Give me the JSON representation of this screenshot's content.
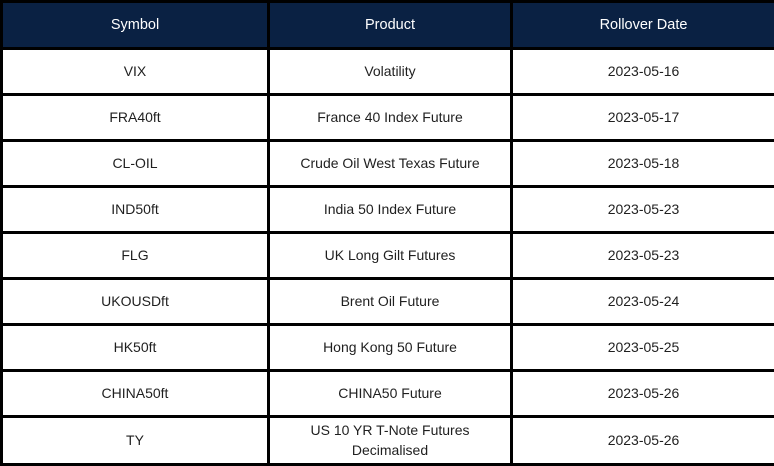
{
  "colors": {
    "header_bg": "#0a2143",
    "header_text": "#ffffff",
    "border": "#000000",
    "cell_bg": "#ffffff",
    "cell_text": "#1f1f1f"
  },
  "table": {
    "columns": [
      {
        "key": "symbol",
        "label": "Symbol"
      },
      {
        "key": "product",
        "label": "Product"
      },
      {
        "key": "rollover_date",
        "label": "Rollover Date"
      }
    ],
    "rows": [
      {
        "symbol": "VIX",
        "product": "Volatility",
        "rollover_date": "2023-05-16"
      },
      {
        "symbol": "FRA40ft",
        "product": "France 40 Index Future",
        "rollover_date": "2023-05-17"
      },
      {
        "symbol": "CL-OIL",
        "product": "Crude Oil West Texas Future",
        "rollover_date": "2023-05-18"
      },
      {
        "symbol": "IND50ft",
        "product": "India 50 Index Future",
        "rollover_date": "2023-05-23"
      },
      {
        "symbol": "FLG",
        "product": "UK Long Gilt Futures",
        "rollover_date": "2023-05-23"
      },
      {
        "symbol": "UKOUSDft",
        "product": "Brent Oil Future",
        "rollover_date": "2023-05-24"
      },
      {
        "symbol": "HK50ft",
        "product": "Hong Kong 50 Future",
        "rollover_date": "2023-05-25"
      },
      {
        "symbol": "CHINA50ft",
        "product": "CHINA50 Future",
        "rollover_date": "2023-05-26"
      },
      {
        "symbol": "TY",
        "product": "US 10 YR T-Note Futures Decimalised",
        "rollover_date": "2023-05-26"
      }
    ]
  }
}
